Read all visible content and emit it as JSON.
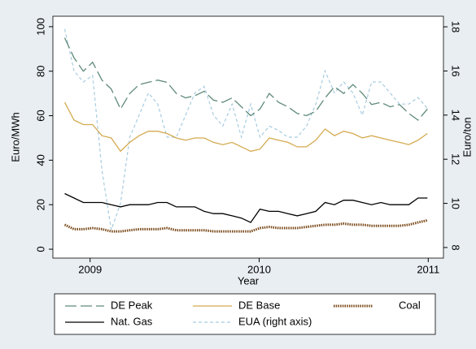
{
  "chart_data": {
    "type": "line",
    "x_label": "Year",
    "y_label": "Euro/MWh",
    "y2_label": "Euro/ton",
    "x": [
      2008.85,
      2008.905,
      2008.96,
      2009.015,
      2009.07,
      2009.125,
      2009.18,
      2009.235,
      2009.29,
      2009.345,
      2009.4,
      2009.455,
      2009.51,
      2009.565,
      2009.62,
      2009.675,
      2009.73,
      2009.785,
      2009.84,
      2009.895,
      2009.95,
      2010.005,
      2010.06,
      2010.115,
      2010.17,
      2010.225,
      2010.28,
      2010.335,
      2010.39,
      2010.445,
      2010.5,
      2010.555,
      2010.61,
      2010.665,
      2010.72,
      2010.775,
      2010.83,
      2010.885,
      2010.94,
      2010.995
    ],
    "xlim": [
      2008.78,
      2011.09
    ],
    "xticks": [
      2009,
      2010,
      2011
    ],
    "ylim": [
      -4,
      104.7
    ],
    "yticks": [
      0,
      20,
      40,
      60,
      80,
      100
    ],
    "y2lim": [
      7.52,
      18.48
    ],
    "y2ticks": [
      8,
      10,
      12,
      14,
      16,
      18
    ],
    "series": [
      {
        "name": "DE Peak",
        "color": "#5f8a7a",
        "line_style": "long-dash",
        "values": [
          95,
          86,
          80,
          84,
          76,
          72,
          63,
          70,
          74,
          75,
          76,
          75,
          70,
          68,
          69,
          71,
          67,
          66,
          68,
          64,
          60,
          63,
          70,
          66,
          64,
          61,
          60,
          62,
          68,
          73,
          70,
          74,
          70,
          65,
          66,
          64,
          65,
          61,
          58,
          63
        ]
      },
      {
        "name": "DE Base",
        "color": "#d4aa50",
        "line_style": "solid",
        "values": [
          66,
          58,
          56,
          56,
          51,
          50,
          44,
          48,
          51,
          53,
          53,
          52,
          50,
          49,
          50,
          50,
          48,
          47,
          48,
          46,
          44,
          45,
          50,
          49,
          48,
          46,
          46,
          49,
          54,
          51,
          53,
          52,
          50,
          51,
          50,
          49,
          48,
          47,
          49,
          52
        ]
      },
      {
        "name": "Coal",
        "color": "#7a4a1a",
        "line_style": "dotted",
        "values": [
          11,
          9,
          9,
          9.5,
          9,
          8,
          8,
          8.5,
          9,
          9,
          9,
          9.5,
          8.5,
          8.5,
          8.5,
          8.5,
          8,
          8,
          8,
          8,
          8,
          9.5,
          10,
          9.5,
          9.5,
          9.5,
          10,
          10.5,
          11,
          11,
          11.5,
          11,
          11,
          10.5,
          10.5,
          10.5,
          10.5,
          11,
          12,
          13
        ]
      },
      {
        "name": "Nat. Gas",
        "color": "#000000",
        "line_style": "solid",
        "values": [
          25,
          23,
          21,
          21,
          21,
          20,
          19,
          20,
          20,
          20,
          21,
          21,
          19,
          19,
          19,
          17,
          16,
          16,
          15,
          14,
          12,
          18,
          17,
          17,
          16,
          15,
          16,
          17,
          21,
          20,
          22,
          22,
          21,
          20,
          21,
          20,
          20,
          20,
          23,
          23
        ]
      },
      {
        "name": "EUA (right axis)",
        "color": "#a8cce0",
        "line_style": "short-dash",
        "axis": "y2",
        "values": [
          17.9,
          16,
          15.5,
          15.8,
          11.5,
          8.8,
          10,
          13,
          14,
          15,
          14.5,
          13,
          13,
          14,
          15,
          15.3,
          14,
          13.5,
          14.5,
          13,
          14.5,
          13,
          13.5,
          13.3,
          13,
          13,
          13.5,
          14.5,
          16,
          15,
          15.5,
          15,
          14,
          15.5,
          15.5,
          15,
          14.5,
          14.5,
          14.8,
          14.3
        ]
      }
    ]
  }
}
